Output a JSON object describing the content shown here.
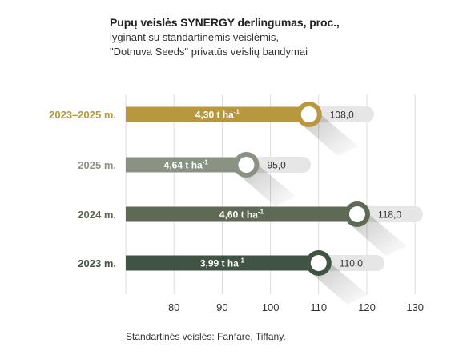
{
  "title": "Pupų veislės SYNERGY derlingumas, proc.,",
  "subtitle_line1": "lyginant su standartinėmis veislėmis,",
  "subtitle_line2": "\"Dotnuva Seeds\" privatūs veislių bandymai",
  "footnote": "Standartinės veislės: Fanfare, Tiffany.",
  "chart_data": {
    "type": "bar",
    "orientation": "horizontal",
    "x_ticks": [
      80,
      90,
      100,
      110,
      120,
      130
    ],
    "xlim": [
      70,
      130
    ],
    "grid": true,
    "rows": [
      {
        "category": "2023–2025 m.",
        "value": 108.0,
        "value_label": "108,0",
        "bar_label": "4,30 t ha",
        "bar_label_sup": "-1",
        "color": "#b8973f",
        "label_color": "#b8973f"
      },
      {
        "category": "2025 m.",
        "value": 95.0,
        "value_label": "95,0",
        "bar_label": "4,64 t ha",
        "bar_label_sup": "-1",
        "color": "#8a9383",
        "label_color": "#8a9383"
      },
      {
        "category": "2024 m.",
        "value": 118.0,
        "value_label": "118,0",
        "bar_label": "4,60 t ha",
        "bar_label_sup": "-1",
        "color": "#5e6a55",
        "label_color": "#5e6a55"
      },
      {
        "category": "2023 m.",
        "value": 110.0,
        "value_label": "110,0",
        "bar_label": "3,99 t ha",
        "bar_label_sup": "-1",
        "color": "#415443",
        "label_color": "#415443"
      }
    ]
  }
}
